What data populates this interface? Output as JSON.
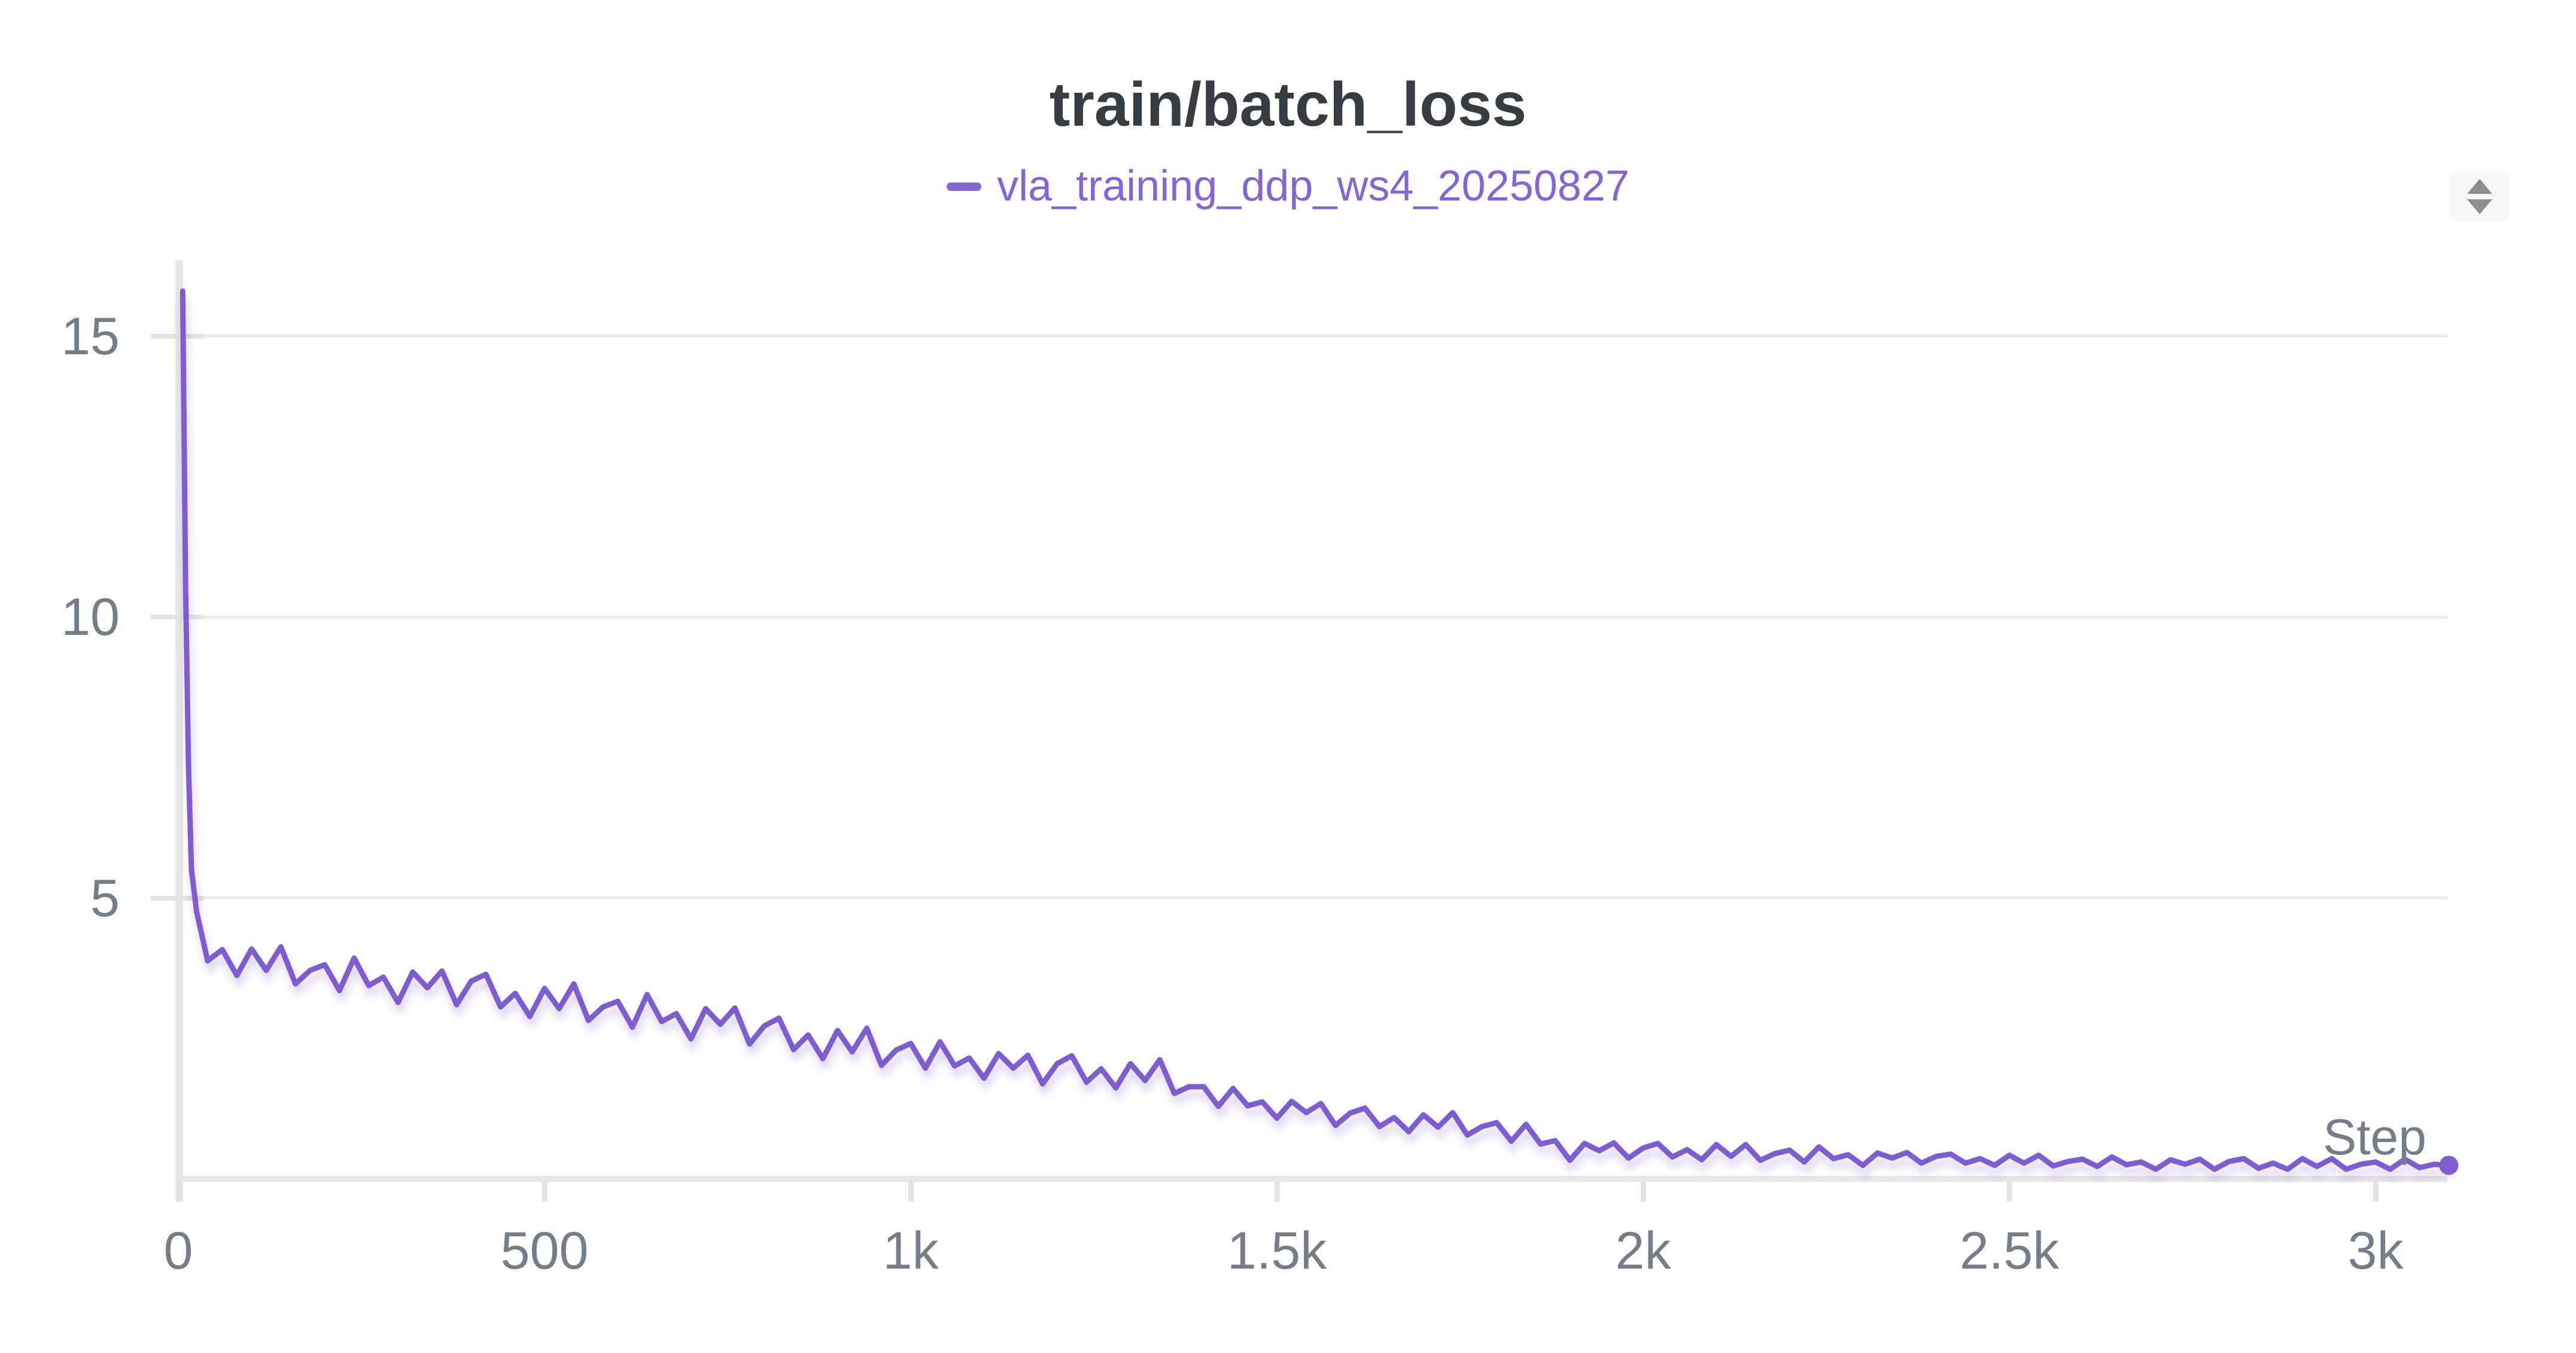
{
  "header": {
    "title": "train/batch_loss"
  },
  "legend": {
    "items": [
      {
        "label": "vla_training_ddp_ws4_20250827",
        "color": "#8465d3"
      }
    ]
  },
  "controls": {
    "sort_icon": "up-down-arrows"
  },
  "axes": {
    "x_title": "Step"
  },
  "colors": {
    "background": "#ffffff",
    "title_text": "#373c41",
    "legend_accent": "#8465d3",
    "line": "#7e5dd1",
    "grid": "#ececec",
    "axis": "#e7e7e7",
    "tick_bar": "#e3e3e3",
    "tick_text": "#757d89",
    "icon_bg": "#f7f7f7",
    "icon_arrow": "#8a8f94"
  },
  "chart_data": {
    "type": "line",
    "title": "train/batch_loss",
    "xlabel": "Step",
    "ylabel": "",
    "xlim": [
      0,
      3112
    ],
    "ylim": [
      0,
      16.35
    ],
    "grid": "horizontal-only",
    "legend_position": "top-center",
    "x_ticks": [
      {
        "value": 0,
        "label": "0"
      },
      {
        "value": 500,
        "label": "500"
      },
      {
        "value": 1000,
        "label": "1k"
      },
      {
        "value": 1500,
        "label": "1.5k"
      },
      {
        "value": 2000,
        "label": "2k"
      },
      {
        "value": 2500,
        "label": "2.5k"
      },
      {
        "value": 3000,
        "label": "3k"
      }
    ],
    "y_ticks": [
      {
        "value": 5,
        "label": "5"
      },
      {
        "value": 10,
        "label": "10"
      },
      {
        "value": 15,
        "label": "15"
      }
    ],
    "series": [
      {
        "name": "vla_training_ddp_ws4_20250827",
        "color": "#7e5dd1",
        "endpoint_dot": true,
        "points": [
          [
            6,
            15.8
          ],
          [
            10,
            10.5
          ],
          [
            14,
            7.3
          ],
          [
            18,
            5.5
          ],
          [
            25,
            4.75
          ],
          [
            40,
            3.88
          ],
          [
            60,
            4.08
          ],
          [
            80,
            3.62
          ],
          [
            100,
            4.09
          ],
          [
            120,
            3.71
          ],
          [
            140,
            4.13
          ],
          [
            160,
            3.47
          ],
          [
            180,
            3.71
          ],
          [
            200,
            3.81
          ],
          [
            220,
            3.35
          ],
          [
            240,
            3.93
          ],
          [
            260,
            3.44
          ],
          [
            280,
            3.59
          ],
          [
            300,
            3.14
          ],
          [
            320,
            3.68
          ],
          [
            340,
            3.4
          ],
          [
            360,
            3.7
          ],
          [
            380,
            3.1
          ],
          [
            400,
            3.52
          ],
          [
            420,
            3.64
          ],
          [
            440,
            3.06
          ],
          [
            460,
            3.3
          ],
          [
            480,
            2.89
          ],
          [
            500,
            3.39
          ],
          [
            520,
            3.03
          ],
          [
            540,
            3.47
          ],
          [
            560,
            2.82
          ],
          [
            580,
            3.06
          ],
          [
            600,
            3.16
          ],
          [
            620,
            2.7
          ],
          [
            640,
            3.28
          ],
          [
            660,
            2.8
          ],
          [
            680,
            2.94
          ],
          [
            700,
            2.49
          ],
          [
            720,
            3.03
          ],
          [
            740,
            2.75
          ],
          [
            760,
            3.04
          ],
          [
            780,
            2.4
          ],
          [
            800,
            2.72
          ],
          [
            820,
            2.86
          ],
          [
            840,
            2.3
          ],
          [
            860,
            2.56
          ],
          [
            880,
            2.14
          ],
          [
            900,
            2.64
          ],
          [
            920,
            2.26
          ],
          [
            940,
            2.68
          ],
          [
            960,
            2.02
          ],
          [
            980,
            2.29
          ],
          [
            1000,
            2.41
          ],
          [
            1020,
            1.97
          ],
          [
            1040,
            2.44
          ],
          [
            1060,
            2.01
          ],
          [
            1080,
            2.15
          ],
          [
            1100,
            1.79
          ],
          [
            1120,
            2.23
          ],
          [
            1140,
            1.97
          ],
          [
            1160,
            2.2
          ],
          [
            1180,
            1.69
          ],
          [
            1200,
            2.05
          ],
          [
            1220,
            2.19
          ],
          [
            1240,
            1.72
          ],
          [
            1260,
            1.96
          ],
          [
            1280,
            1.62
          ],
          [
            1300,
            2.05
          ],
          [
            1320,
            1.75
          ],
          [
            1340,
            2.12
          ],
          [
            1360,
            1.52
          ],
          [
            1380,
            1.64
          ],
          [
            1400,
            1.64
          ],
          [
            1420,
            1.29
          ],
          [
            1440,
            1.61
          ],
          [
            1460,
            1.3
          ],
          [
            1480,
            1.37
          ],
          [
            1500,
            1.08
          ],
          [
            1520,
            1.38
          ],
          [
            1540,
            1.18
          ],
          [
            1560,
            1.34
          ],
          [
            1580,
            0.95
          ],
          [
            1600,
            1.17
          ],
          [
            1620,
            1.26
          ],
          [
            1640,
            0.93
          ],
          [
            1660,
            1.09
          ],
          [
            1680,
            0.84
          ],
          [
            1700,
            1.14
          ],
          [
            1720,
            0.92
          ],
          [
            1740,
            1.18
          ],
          [
            1760,
            0.78
          ],
          [
            1780,
            0.93
          ],
          [
            1800,
            1.0
          ],
          [
            1820,
            0.67
          ],
          [
            1840,
            0.97
          ],
          [
            1860,
            0.62
          ],
          [
            1880,
            0.68
          ],
          [
            1900,
            0.33
          ],
          [
            1920,
            0.63
          ],
          [
            1940,
            0.5
          ],
          [
            1960,
            0.64
          ],
          [
            1980,
            0.37
          ],
          [
            2000,
            0.55
          ],
          [
            2020,
            0.63
          ],
          [
            2040,
            0.39
          ],
          [
            2060,
            0.52
          ],
          [
            2080,
            0.34
          ],
          [
            2100,
            0.61
          ],
          [
            2120,
            0.4
          ],
          [
            2140,
            0.61
          ],
          [
            2160,
            0.33
          ],
          [
            2180,
            0.45
          ],
          [
            2200,
            0.51
          ],
          [
            2220,
            0.3
          ],
          [
            2240,
            0.57
          ],
          [
            2260,
            0.36
          ],
          [
            2280,
            0.43
          ],
          [
            2300,
            0.24
          ],
          [
            2320,
            0.46
          ],
          [
            2340,
            0.37
          ],
          [
            2360,
            0.47
          ],
          [
            2380,
            0.28
          ],
          [
            2400,
            0.4
          ],
          [
            2420,
            0.44
          ],
          [
            2440,
            0.28
          ],
          [
            2460,
            0.36
          ],
          [
            2480,
            0.24
          ],
          [
            2500,
            0.42
          ],
          [
            2520,
            0.28
          ],
          [
            2540,
            0.42
          ],
          [
            2560,
            0.23
          ],
          [
            2580,
            0.31
          ],
          [
            2600,
            0.35
          ],
          [
            2620,
            0.22
          ],
          [
            2640,
            0.39
          ],
          [
            2660,
            0.25
          ],
          [
            2680,
            0.3
          ],
          [
            2700,
            0.17
          ],
          [
            2720,
            0.34
          ],
          [
            2740,
            0.26
          ],
          [
            2760,
            0.35
          ],
          [
            2780,
            0.17
          ],
          [
            2800,
            0.31
          ],
          [
            2820,
            0.36
          ],
          [
            2840,
            0.19
          ],
          [
            2860,
            0.28
          ],
          [
            2880,
            0.17
          ],
          [
            2900,
            0.36
          ],
          [
            2920,
            0.22
          ],
          [
            2940,
            0.36
          ],
          [
            2960,
            0.17
          ],
          [
            2980,
            0.26
          ],
          [
            3000,
            0.3
          ],
          [
            3020,
            0.17
          ],
          [
            3040,
            0.35
          ],
          [
            3060,
            0.2
          ],
          [
            3080,
            0.26
          ],
          [
            3100,
            0.24
          ]
        ]
      }
    ]
  }
}
